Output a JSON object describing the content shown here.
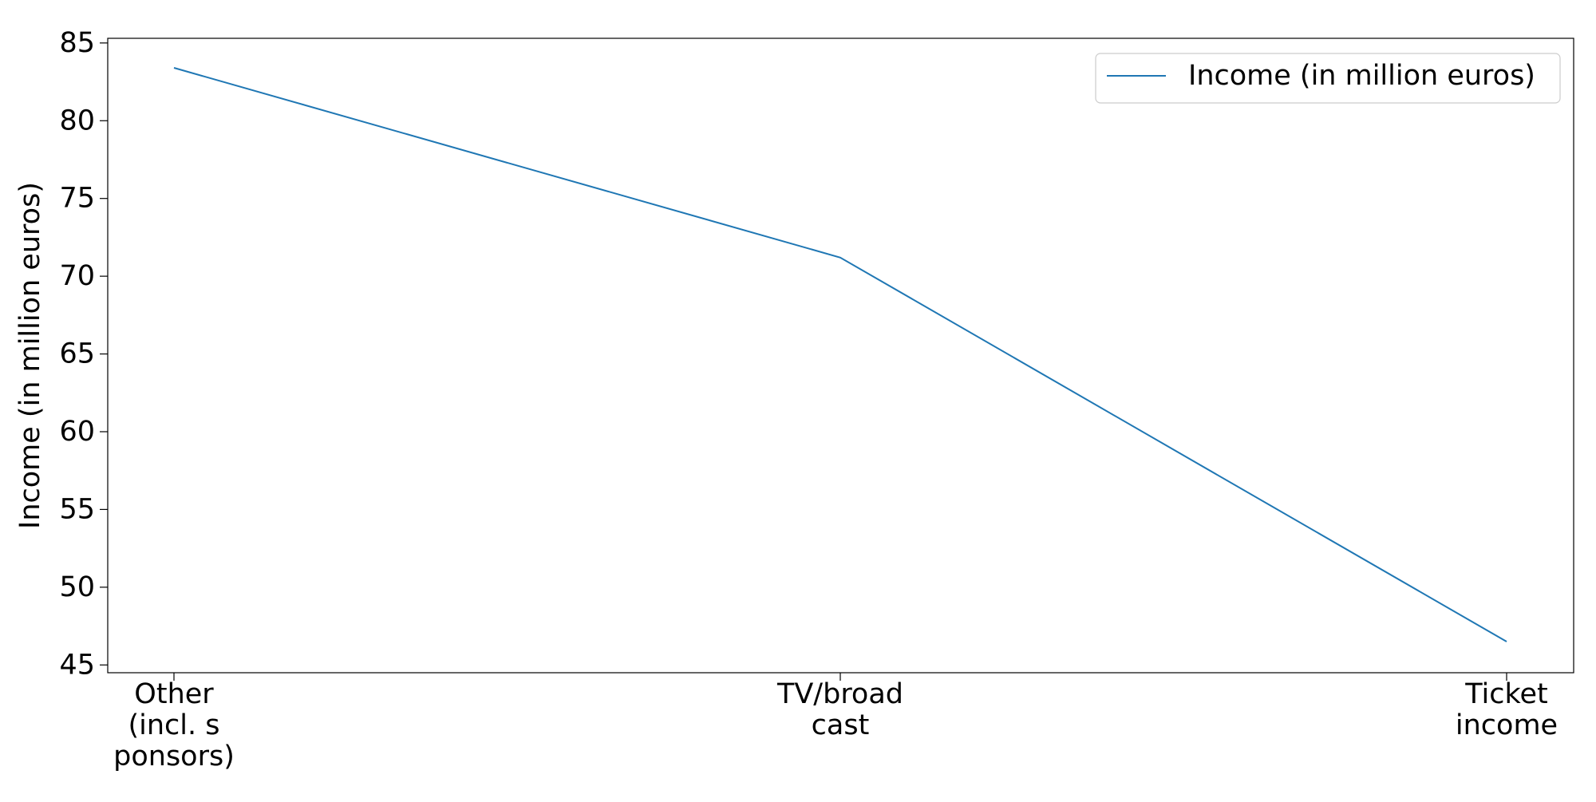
{
  "chart_data": {
    "type": "line",
    "title": "",
    "xlabel": "",
    "ylabel": "Income (in million euros)",
    "categories": [
      [
        "Other",
        "(incl. s",
        "ponsors)"
      ],
      [
        "TV/broad",
        "cast"
      ],
      [
        "Ticket",
        "income"
      ]
    ],
    "series": [
      {
        "name": "Income (in million euros)",
        "values": [
          83.4,
          71.2,
          46.5
        ],
        "color": "#1f77b4"
      }
    ],
    "ylim": [
      44.5,
      85.3
    ],
    "yticks": [
      45,
      50,
      55,
      60,
      65,
      70,
      75,
      80,
      85
    ],
    "grid": false,
    "legend": "top-right"
  }
}
